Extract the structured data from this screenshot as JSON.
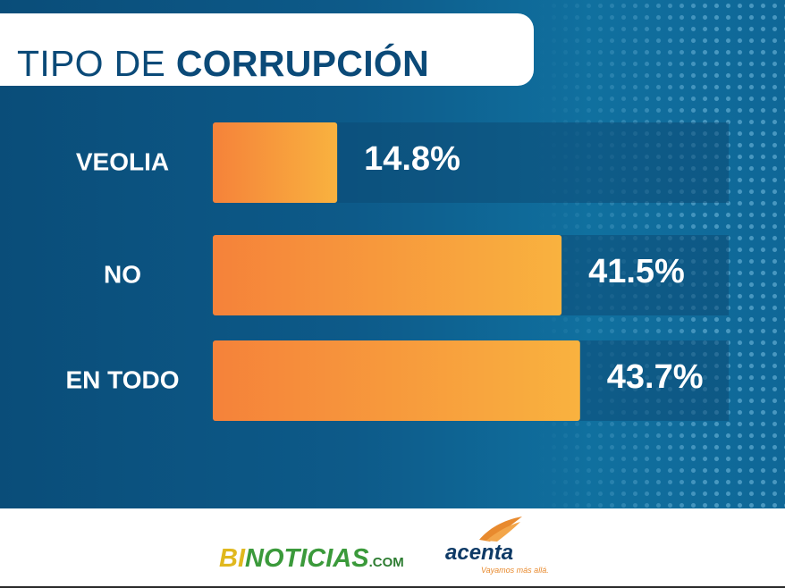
{
  "title": {
    "light": "TIPO DE",
    "bold": "CORRUPCIÓN"
  },
  "chart_data": {
    "type": "bar",
    "orientation": "horizontal",
    "title": "TIPO DE CORRUPCIÓN",
    "categories": [
      "VEOLIA",
      "NO",
      "EN TODO"
    ],
    "values": [
      14.8,
      41.5,
      43.7
    ],
    "value_labels": [
      "14.8%",
      "41.5%",
      "43.7%"
    ],
    "unit": "%",
    "xlim": [
      0,
      100
    ],
    "bar_gradient": [
      "#f5823a",
      "#f9b23f"
    ],
    "track_color": "#0d4b75",
    "label_color": "#ffffff"
  },
  "footer": {
    "bi_logo": {
      "bi": "BI",
      "noticias": "NOTICIAS",
      "com": ".COM"
    },
    "acenta": {
      "word": "acenta",
      "tagline": "Vayamos más allá."
    }
  },
  "colors": {
    "panel_dark": "#0a4d79",
    "panel_light": "#10709f",
    "title_text": "#0b4a78",
    "bi_yellow": "#e0b81e",
    "bi_green": "#3b9a3b",
    "acenta_navy": "#0e3a66",
    "acenta_orange": "#e88a2e"
  },
  "icons": {
    "acenta_mark": "acenta-swoosh-icon",
    "background_texture": "dot-pattern"
  }
}
